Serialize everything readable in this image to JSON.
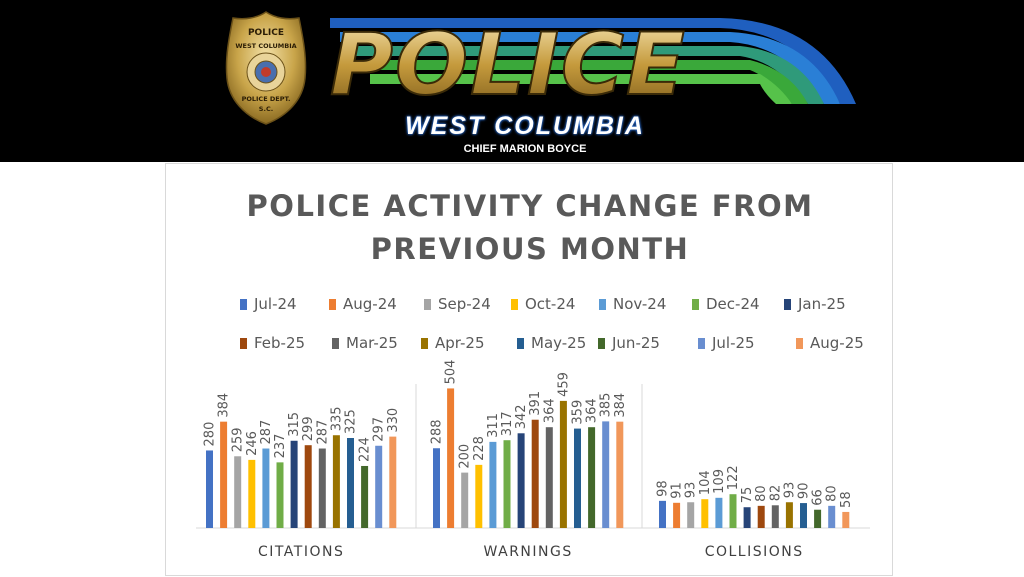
{
  "header": {
    "badge_text": [
      "POLICE",
      "WEST COLUMBIA",
      "POLICE DEPT.",
      "S.C."
    ],
    "logo_word": "POLICE",
    "city": "WEST COLUMBIA",
    "chief": "CHIEF MARION BOYCE"
  },
  "colors": {
    "banner_bg": "#000000",
    "logo_gold": "#c9a54a",
    "stripe_blue": "#1f5fbf",
    "stripe_green": "#3aa83a"
  },
  "chart_data": {
    "type": "bar",
    "title": "POLICE ACTIVITY CHANGE FROM PREVIOUS MONTH",
    "title_lines": [
      "POLICE ACTIVITY CHANGE FROM",
      "PREVIOUS MONTH"
    ],
    "categories": [
      "CITATIONS",
      "WARNINGS",
      "COLLISIONS"
    ],
    "legend_position": "top",
    "grid": false,
    "ylim": [
      0,
      520
    ],
    "series": [
      {
        "name": "Jul-24",
        "color": "#4472C4",
        "values": [
          280,
          288,
          98
        ]
      },
      {
        "name": "Aug-24",
        "color": "#ED7D31",
        "values": [
          384,
          504,
          91
        ]
      },
      {
        "name": "Sep-24",
        "color": "#A5A5A5",
        "values": [
          259,
          200,
          93
        ]
      },
      {
        "name": "Oct-24",
        "color": "#FFC000",
        "values": [
          246,
          228,
          104
        ]
      },
      {
        "name": "Nov-24",
        "color": "#5B9BD5",
        "values": [
          287,
          311,
          109
        ]
      },
      {
        "name": "Dec-24",
        "color": "#70AD47",
        "values": [
          237,
          317,
          122
        ]
      },
      {
        "name": "Jan-25",
        "color": "#264478",
        "values": [
          315,
          342,
          75
        ]
      },
      {
        "name": "Feb-25",
        "color": "#9E480E",
        "values": [
          299,
          391,
          80
        ]
      },
      {
        "name": "Mar-25",
        "color": "#636363",
        "values": [
          287,
          364,
          82
        ]
      },
      {
        "name": "Apr-25",
        "color": "#997300",
        "values": [
          335,
          459,
          93
        ]
      },
      {
        "name": "May-25",
        "color": "#255E91",
        "values": [
          325,
          359,
          90
        ]
      },
      {
        "name": "Jun-25",
        "color": "#43682B",
        "values": [
          224,
          364,
          66
        ]
      },
      {
        "name": "Jul-25",
        "color": "#698ED0",
        "values": [
          297,
          385,
          80
        ]
      },
      {
        "name": "Aug-25",
        "color": "#F1975A",
        "values": [
          330,
          384,
          58
        ]
      }
    ]
  }
}
